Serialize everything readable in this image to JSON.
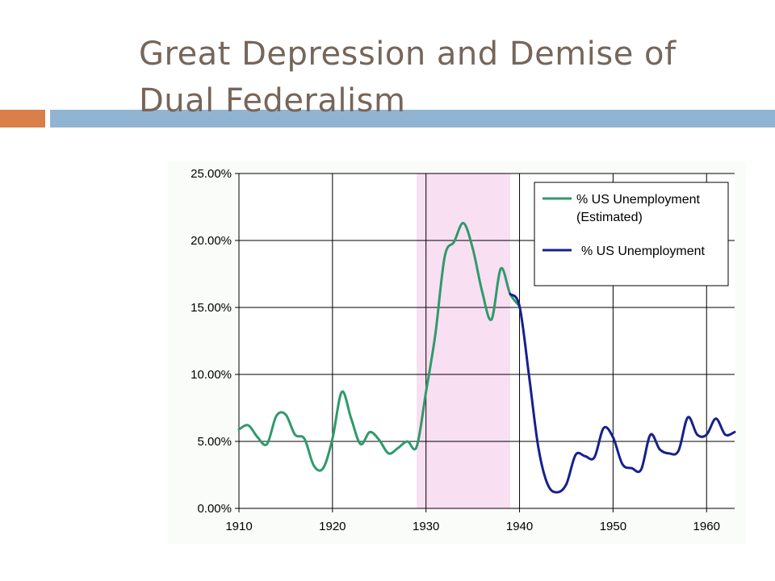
{
  "slide": {
    "title": "Great Depression and Demise of Dual Federalism",
    "colors": {
      "title": "#76665a",
      "accent_orange": "#d9804a",
      "accent_blue": "#92b4d3"
    }
  },
  "chart_data": {
    "type": "line",
    "title": "",
    "xlabel": "",
    "ylabel": "",
    "xlim": [
      1910,
      1963
    ],
    "ylim": [
      0,
      25
    ],
    "x_ticks": [
      1910,
      1920,
      1930,
      1940,
      1950,
      1960
    ],
    "x_tick_labels": [
      "1910",
      "1920",
      "1930",
      "1940",
      "1950",
      "1960"
    ],
    "y_ticks": [
      0,
      5,
      10,
      15,
      20,
      25
    ],
    "y_tick_labels": [
      "0.00%",
      "5.00%",
      "10.00%",
      "15.00%",
      "20.00%",
      "25.00%"
    ],
    "grid": true,
    "legend_position": "top-right",
    "shaded_region": {
      "x_start": 1929,
      "x_end": 1939,
      "color": "#f9dff2"
    },
    "series": [
      {
        "name_lines": [
          "% US Unemployment",
          "(Estimated)"
        ],
        "color": "#2f9a6b",
        "x": [
          1910,
          1911,
          1912,
          1913,
          1914,
          1915,
          1916,
          1917,
          1918,
          1919,
          1920,
          1921,
          1922,
          1923,
          1924,
          1925,
          1926,
          1927,
          1928,
          1929,
          1930,
          1931,
          1932,
          1933,
          1934,
          1935,
          1936,
          1937,
          1938,
          1939,
          1940
        ],
        "y": [
          5.9,
          6.2,
          5.3,
          4.8,
          6.9,
          7.0,
          5.5,
          5.2,
          3.2,
          3.0,
          5.2,
          8.7,
          6.7,
          4.8,
          5.7,
          5.1,
          4.1,
          4.5,
          5.0,
          4.6,
          8.7,
          13.0,
          18.8,
          19.9,
          21.3,
          19.4,
          16.2,
          14.1,
          17.9,
          16.0,
          15.1
        ]
      },
      {
        "name": "% US Unemployment",
        "color": "#17208c",
        "x": [
          1939,
          1940,
          1941,
          1942,
          1943,
          1944,
          1945,
          1946,
          1947,
          1948,
          1949,
          1950,
          1951,
          1952,
          1953,
          1954,
          1955,
          1956,
          1957,
          1958,
          1959,
          1960,
          1961,
          1962,
          1963
        ],
        "y": [
          16.0,
          15.1,
          10.0,
          4.6,
          1.8,
          1.2,
          1.8,
          4.0,
          3.9,
          3.8,
          6.0,
          5.3,
          3.3,
          3.0,
          2.9,
          5.5,
          4.4,
          4.1,
          4.3,
          6.8,
          5.5,
          5.5,
          6.7,
          5.5,
          5.7
        ]
      }
    ]
  }
}
